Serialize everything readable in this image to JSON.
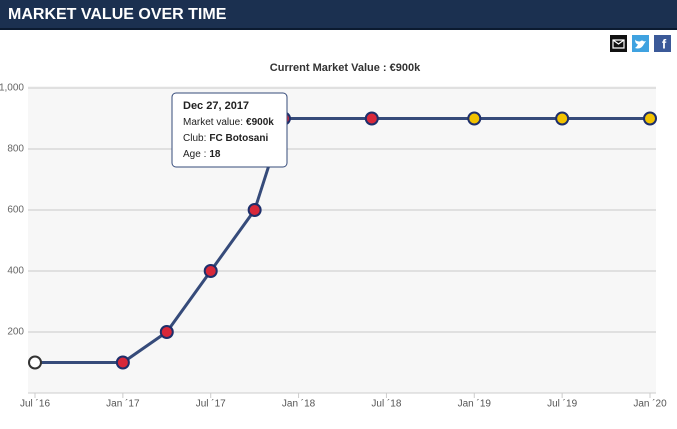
{
  "header": "MARKET VALUE OVER TIME",
  "chart_data": {
    "type": "line",
    "title": "Current Market Value : €900k",
    "x": [
      "2016-07",
      "2017-01",
      "2017-04",
      "2017-07",
      "2017-10",
      "2017-12",
      "2018-06",
      "2019-01",
      "2019-07",
      "2020-01"
    ],
    "series": [
      {
        "color": "#364b7a",
        "values": [
          100,
          100,
          200,
          400,
          600,
          900,
          900,
          900,
          900,
          900
        ],
        "marker_colors": [
          "#ffffff",
          "#d8283a",
          "#d8283a",
          "#d8283a",
          "#d8283a",
          "#d8283a",
          "#d8283a",
          "#f2c200",
          "#f2c200",
          "#f2c200"
        ]
      }
    ],
    "xlim": [
      "2016-07",
      "2020-01"
    ],
    "xticks": [
      {
        "value": "2016-07",
        "label": "Jul ´16"
      },
      {
        "value": "2017-01",
        "label": "Jan ´17"
      },
      {
        "value": "2017-07",
        "label": "Jul ´17"
      },
      {
        "value": "2018-01",
        "label": "Jan ´18"
      },
      {
        "value": "2018-07",
        "label": "Jul ´18"
      },
      {
        "value": "2019-01",
        "label": "Jan ´19"
      },
      {
        "value": "2019-07",
        "label": "Jul ´19"
      },
      {
        "value": "2020-01",
        "label": "Jan ´20"
      }
    ],
    "ylim": [
      0,
      1000
    ],
    "yticks": [
      200,
      400,
      600,
      800,
      {
        "value": 1000,
        "label": "1,000"
      }
    ],
    "grid": true,
    "tooltip": {
      "date": "Dec 27, 2017",
      "lines": [
        {
          "label": "Market value:",
          "value": "€900k"
        },
        {
          "label": "Club:",
          "value": "FC Botosani"
        },
        {
          "label": "Age :",
          "value": "18"
        }
      ]
    }
  }
}
